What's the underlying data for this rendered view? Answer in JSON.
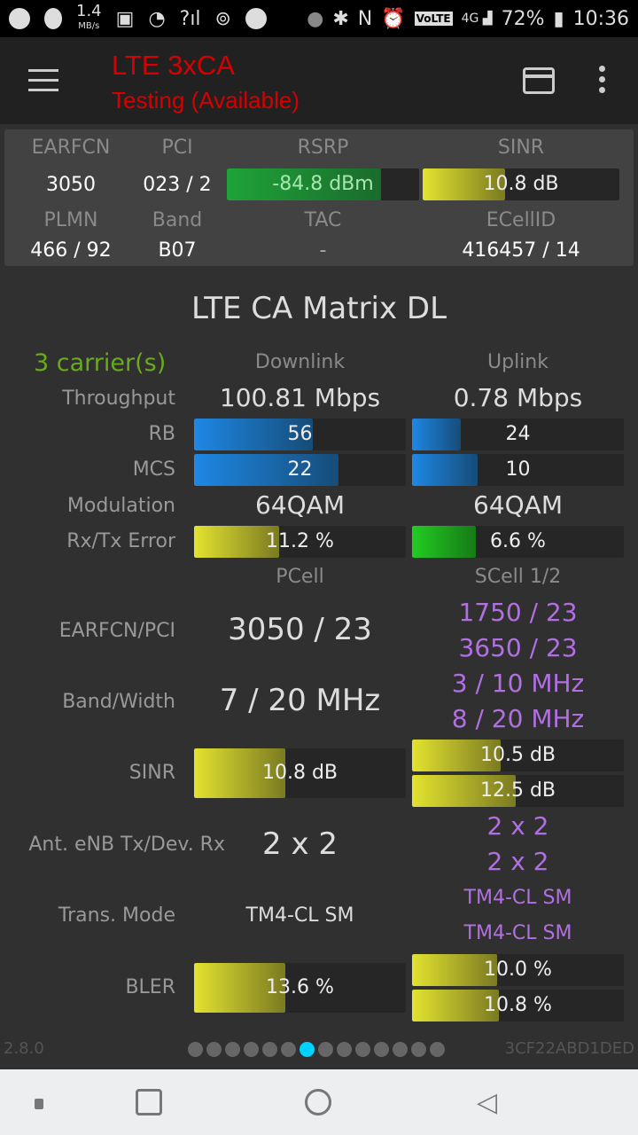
{
  "status_bar": {
    "speed": "1.4",
    "speed_unit": "MB/s",
    "battery": "72%",
    "time": "10:36",
    "volte": "VoLTE"
  },
  "app_bar": {
    "title": "LTE 3xCA",
    "subtitle": "Testing (Available)"
  },
  "summary": {
    "earfcn_label": "EARFCN",
    "earfcn": "3050",
    "pci_label": "PCI",
    "pci": "023 / 2",
    "rsrp_label": "RSRP",
    "rsrp": "-84.8 dBm",
    "rsrp_fill": 0.8,
    "sinr_label": "SINR",
    "sinr": "10.8 dB",
    "sinr_fill": 0.42,
    "plmn_label": "PLMN",
    "plmn": "466 / 92",
    "band_label": "Band",
    "band": "B07",
    "tac_label": "TAC",
    "tac": "-",
    "ecellid_label": "ECellID",
    "ecellid": "416457 / 14"
  },
  "matrix": {
    "title": "LTE CA Matrix DL",
    "carriers": "3 carrier(s)",
    "downlink": "Downlink",
    "uplink": "Uplink",
    "throughput_label": "Throughput",
    "throughput_dl": "100.81 Mbps",
    "throughput_ul": "0.78 Mbps",
    "rb_label": "RB",
    "rb_dl": "56",
    "rb_ul": "24",
    "rb_dl_fill": 0.56,
    "rb_ul_fill": 0.23,
    "mcs_label": "MCS",
    "mcs_dl": "22",
    "mcs_ul": "10",
    "mcs_dl_fill": 0.68,
    "mcs_ul_fill": 0.31,
    "mod_label": "Modulation",
    "mod_dl": "64QAM",
    "mod_ul": "64QAM",
    "err_label": "Rx/Tx Error",
    "err_dl": "11.2 %",
    "err_ul": "6.6 %",
    "err_dl_fill": 0.4,
    "err_ul_fill": 0.3,
    "pcell": "PCell",
    "scell": "SCell 1/2",
    "earfcn_pci_label": "EARFCN/PCI",
    "p_earfcn_pci": "3050 / 23",
    "s1_earfcn_pci": "1750 / 23",
    "s2_earfcn_pci": "3650 / 23",
    "bw_label": "Band/Width",
    "p_bw": "7 / 20 MHz",
    "s1_bw": "3 / 10 MHz",
    "s2_bw": "8 / 20 MHz",
    "sinr_label": "SINR",
    "p_sinr": "10.8 dB",
    "s1_sinr": "10.5 dB",
    "s2_sinr": "12.5 dB",
    "p_sinr_fill": 0.43,
    "s1_sinr_fill": 0.42,
    "s2_sinr_fill": 0.49,
    "ant_label": "Ant. eNB Tx/Dev. Rx",
    "p_ant": "2 x 2",
    "s1_ant": "2 x 2",
    "s2_ant": "2 x 2",
    "tm_label": "Trans. Mode",
    "p_tm": "TM4-CL SM",
    "s1_tm": "TM4-CL SM",
    "s2_tm": "TM4-CL SM",
    "bler_label": "BLER",
    "p_bler": "13.6 %",
    "s1_bler": "10.0 %",
    "s2_bler": "10.8 %",
    "p_bler_fill": 0.43,
    "s1_bler_fill": 0.4,
    "s2_bler_fill": 0.41
  },
  "footer": {
    "version": "2.8.0",
    "device_id": "3CF22ABD1DED",
    "page_count": 14,
    "active_page": 7
  },
  "colors": {
    "title_red": "#d50000",
    "carriers_green": "#6aaa1e",
    "scell_purple": "#b070e0",
    "active_dot": "#00d2ff"
  }
}
